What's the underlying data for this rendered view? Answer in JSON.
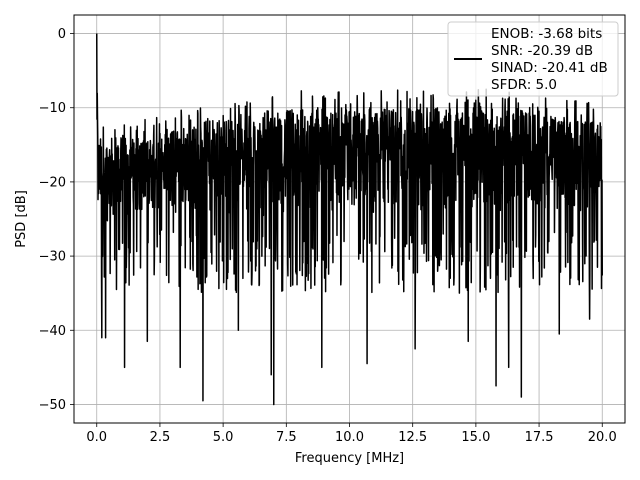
{
  "chart_data": {
    "type": "line",
    "title": "",
    "xlabel": "Frequency [MHz]",
    "ylabel": "PSD [dB]",
    "xlim": [
      -0.9,
      20.9
    ],
    "ylim": [
      -52.5,
      2.5
    ],
    "xticks": [
      0.0,
      2.5,
      5.0,
      7.5,
      10.0,
      12.5,
      15.0,
      17.5,
      20.0
    ],
    "xtick_labels": [
      "0.0",
      "2.5",
      "5.0",
      "7.5",
      "10.0",
      "12.5",
      "15.0",
      "17.5",
      "20.0"
    ],
    "yticks": [
      0,
      -10,
      -20,
      -30,
      -40,
      -50
    ],
    "ytick_labels": [
      "0",
      "−10",
      "−20",
      "−30",
      "−40",
      "−50"
    ],
    "grid": true,
    "legend_placement": "top-right",
    "series": [
      {
        "name": "ENOB: -3.68 bits\nSNR: -20.39 dB\nSINAD: -20.41 dB\nSFDR: 5.0",
        "legend_lines": [
          "ENOB: -3.68 bits",
          "SNR: -20.39 dB",
          "SINAD: -20.41 dB",
          "SFDR: 5.0"
        ],
        "color": "#000000",
        "x_range": [
          0.0,
          20.0
        ],
        "points_count": 2000,
        "peak": {
          "x": 0.0,
          "y": 0.0
        },
        "band_lower": [
          -28,
          -26,
          -27,
          -27,
          -27,
          -27,
          -27,
          -27,
          -27,
          -26,
          -27
        ],
        "band_upper": [
          -14,
          -14,
          -12,
          -11,
          -10,
          -10,
          -10,
          -10,
          -10,
          -11,
          -12
        ],
        "dips": [
          {
            "x": 0.2,
            "y": -41.0
          },
          {
            "x": 0.35,
            "y": -41.0
          },
          {
            "x": 1.1,
            "y": -45.0
          },
          {
            "x": 2.0,
            "y": -41.5
          },
          {
            "x": 3.3,
            "y": -45.0
          },
          {
            "x": 4.2,
            "y": -49.5
          },
          {
            "x": 5.6,
            "y": -40.0
          },
          {
            "x": 6.9,
            "y": -46.0
          },
          {
            "x": 7.0,
            "y": -50.0
          },
          {
            "x": 8.9,
            "y": -45.0
          },
          {
            "x": 10.7,
            "y": -44.5
          },
          {
            "x": 12.6,
            "y": -42.5
          },
          {
            "x": 14.7,
            "y": -41.5
          },
          {
            "x": 15.8,
            "y": -47.5
          },
          {
            "x": 16.3,
            "y": -45.0
          },
          {
            "x": 16.8,
            "y": -49.0
          },
          {
            "x": 18.3,
            "y": -40.5
          },
          {
            "x": 19.5,
            "y": -38.5
          }
        ]
      }
    ]
  }
}
